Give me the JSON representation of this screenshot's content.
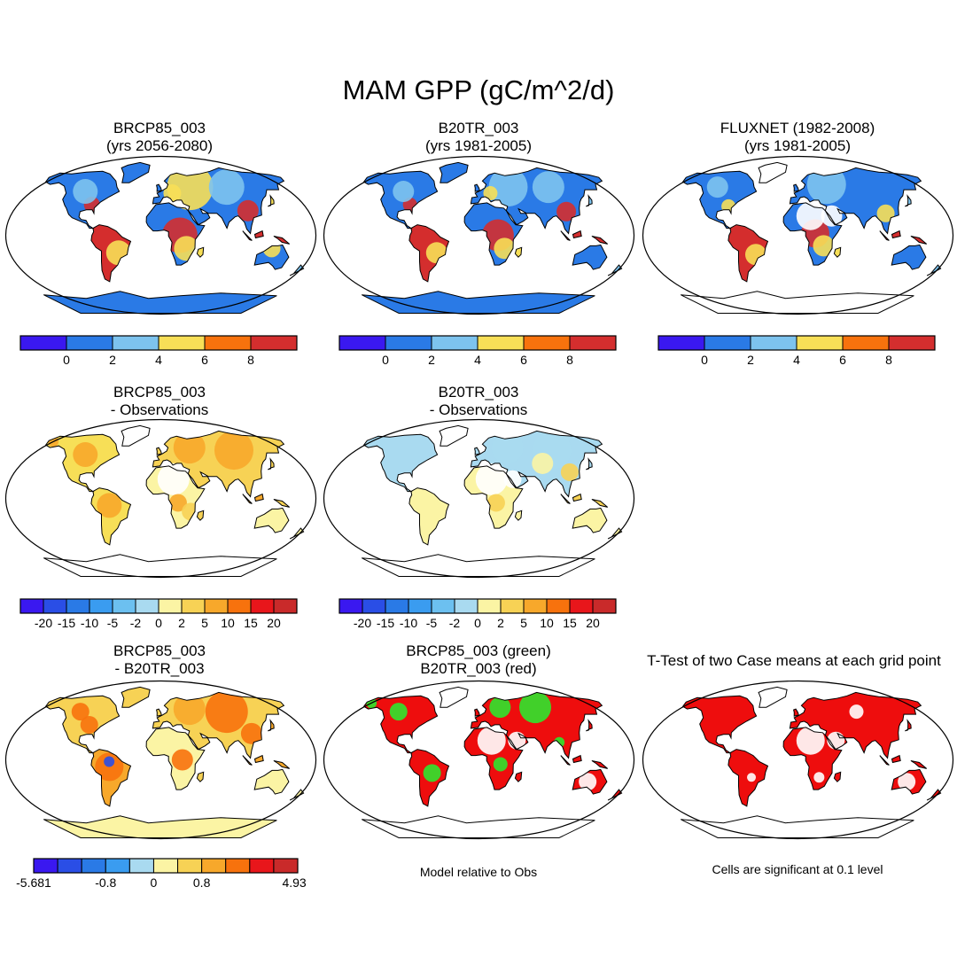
{
  "figure": {
    "title": "MAM GPP (gC/m^2/d)"
  },
  "chart_data": [
    {
      "type": "heatmap",
      "panel": "row1-col1",
      "title_line1": "BRCP85_003",
      "title_line2": "(yrs 2056-2080)",
      "variable": "GPP (gC/m^2/d)",
      "season": "MAM",
      "colorbar": {
        "tick_labels": [
          "0",
          "2",
          "4",
          "6",
          "8"
        ],
        "colors": [
          "#3a18f0",
          "#2a7ae6",
          "#7dc3ee",
          "#f7df57",
          "#f7720d",
          "#d42e2e"
        ]
      }
    },
    {
      "type": "heatmap",
      "panel": "row1-col2",
      "title_line1": "B20TR_003",
      "title_line2": "(yrs 1981-2005)",
      "variable": "GPP (gC/m^2/d)",
      "season": "MAM",
      "colorbar": {
        "tick_labels": [
          "0",
          "2",
          "4",
          "6",
          "8"
        ],
        "colors": [
          "#3a18f0",
          "#2a7ae6",
          "#7dc3ee",
          "#f7df57",
          "#f7720d",
          "#d42e2e"
        ]
      }
    },
    {
      "type": "heatmap",
      "panel": "row1-col3",
      "title_line1": "FLUXNET (1982-2008)",
      "title_line2": "(yrs 1981-2005)",
      "variable": "GPP (gC/m^2/d)",
      "season": "MAM",
      "colorbar": {
        "tick_labels": [
          "0",
          "2",
          "4",
          "6",
          "8"
        ],
        "colors": [
          "#3a18f0",
          "#2a7ae6",
          "#7dc3ee",
          "#f7df57",
          "#f7720d",
          "#d42e2e"
        ]
      }
    },
    {
      "type": "heatmap",
      "panel": "row2-col1",
      "title_line1": "BRCP85_003",
      "title_line2": "- Observations",
      "variable": "GPP difference",
      "season": "MAM",
      "colorbar": {
        "tick_labels": [
          "-20",
          "-15",
          "-10",
          "-5",
          "-2",
          "0",
          "2",
          "5",
          "10",
          "15",
          "20"
        ],
        "colors": [
          "#3a18f0",
          "#2a4ee6",
          "#2a7ae6",
          "#3a9cf0",
          "#6cc0f0",
          "#a9daf0",
          "#fbf4a4",
          "#f7d255",
          "#f7a82b",
          "#f7720d",
          "#e8161b",
          "#c92a2a"
        ]
      }
    },
    {
      "type": "heatmap",
      "panel": "row2-col2",
      "title_line1": "B20TR_003",
      "title_line2": "- Observations",
      "variable": "GPP difference",
      "season": "MAM",
      "colorbar": {
        "tick_labels": [
          "-20",
          "-15",
          "-10",
          "-5",
          "-2",
          "0",
          "2",
          "5",
          "10",
          "15",
          "20"
        ],
        "colors": [
          "#3a18f0",
          "#2a4ee6",
          "#2a7ae6",
          "#3a9cf0",
          "#6cc0f0",
          "#a9daf0",
          "#fbf4a4",
          "#f7d255",
          "#f7a82b",
          "#f7720d",
          "#e8161b",
          "#c92a2a"
        ]
      }
    },
    {
      "type": "heatmap",
      "panel": "row3-col1",
      "title_line1": "BRCP85_003",
      "title_line2": "- B20TR_003",
      "variable": "GPP difference",
      "season": "MAM",
      "colorbar": {
        "tick_labels": [
          "-5.681",
          "-0.8",
          "0",
          "0.8",
          "4.933"
        ],
        "colors": [
          "#3a18f0",
          "#2a4ee6",
          "#2a7ae6",
          "#3a9cf0",
          "#a9daf0",
          "#fbf4a4",
          "#f7d255",
          "#f7a82b",
          "#f7720d",
          "#e8161b",
          "#c92a2a"
        ]
      }
    },
    {
      "type": "heatmap",
      "panel": "row3-col2",
      "title_line1": "BRCP85_003 (green)",
      "title_line2": "B20TR_003 (red)",
      "variable": "Model relative to Obs",
      "note": "Model relative to Obs",
      "legend": [
        {
          "label": "BRCP85_003 (green)",
          "color": "#2ee52e"
        },
        {
          "label": "B20TR_003 (red)",
          "color": "#ee0d0d"
        }
      ]
    },
    {
      "type": "heatmap",
      "panel": "row3-col3",
      "title_line1": "T-Test of two Case means at each grid point",
      "title_line2": "",
      "variable": "significance",
      "note": "Cells are significant at 0.1 level",
      "significance_level": 0.1
    }
  ]
}
